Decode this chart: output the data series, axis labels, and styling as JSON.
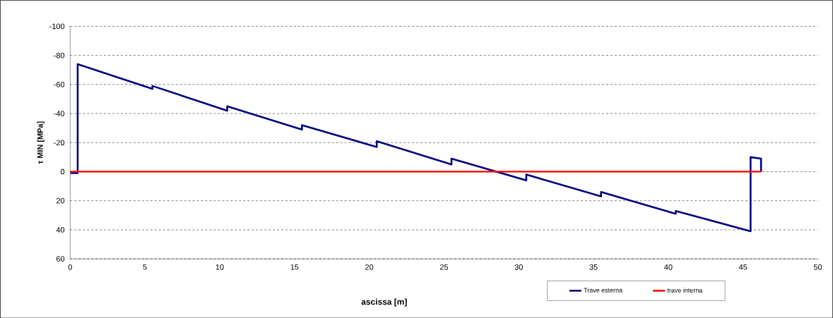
{
  "chart_data": {
    "type": "line",
    "xlabel": "ascissa [m]",
    "ylabel": "τ MIN [MPa]",
    "xlim": [
      0,
      50
    ],
    "ylim": [
      60,
      -100
    ],
    "xticks": [
      0,
      5,
      10,
      15,
      20,
      25,
      30,
      35,
      40,
      45,
      50
    ],
    "yticks": [
      -100,
      -80,
      -60,
      -40,
      -20,
      0,
      20,
      40,
      60
    ],
    "grid": "y",
    "legend": "bottom right",
    "series": [
      {
        "name": "Trave esterna",
        "color": "#000080",
        "x": [
          0,
          0.5,
          0.5,
          5.5,
          5.5,
          10.5,
          10.5,
          15.5,
          15.5,
          20.5,
          20.5,
          25.5,
          25.5,
          30.5,
          30.5,
          35.5,
          35.5,
          40.5,
          40.5,
          45.5,
          45.5,
          46.2,
          46.2
        ],
        "values": [
          1,
          1,
          -74,
          -57,
          -59,
          -42,
          -45,
          -29,
          -32,
          -17,
          -21,
          -5,
          -9,
          6,
          2,
          17,
          14,
          29,
          27,
          41,
          -10,
          -9,
          0
        ]
      },
      {
        "name": "trave interna",
        "color": "#ff0000",
        "x": [
          0,
          46.2
        ],
        "values": [
          0,
          0
        ]
      }
    ]
  }
}
